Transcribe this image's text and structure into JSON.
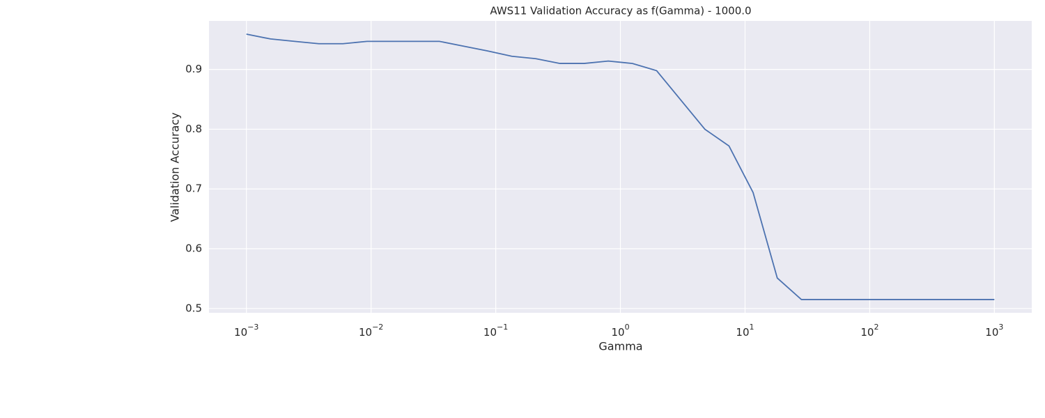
{
  "chart_data": {
    "type": "line",
    "title": "AWS11 Validation Accuracy as f(Gamma) - 1000.0",
    "x_label": "Gamma",
    "y_label": "Validation Accuracy",
    "x": [
      0.001,
      0.0015613,
      0.0024377,
      0.0038061,
      0.0059425,
      0.0092784,
      0.014487,
      0.022619,
      0.035317,
      0.055142,
      0.086097,
      0.13443,
      0.20989,
      0.32771,
      0.51168,
      0.8,
      1.2499,
      1.9514,
      3.0471,
      4.7575,
      7.4285,
      11.6,
      18.135,
      28.315,
      44.21,
      69.03,
      107.77,
      168.28,
      262.74,
      410.22,
      640.5,
      1000
    ],
    "series": [
      {
        "name": "Validation Accuracy",
        "color": "#4c72b0",
        "values": [
          0.959,
          0.951,
          0.947,
          0.943,
          0.943,
          0.947,
          0.947,
          0.947,
          0.947,
          0.939,
          0.931,
          0.922,
          0.918,
          0.91,
          0.91,
          0.914,
          0.91,
          0.898,
          0.849,
          0.8,
          0.772,
          0.694,
          0.551,
          0.515,
          0.515,
          0.515,
          0.515,
          0.515,
          0.515,
          0.515,
          0.515,
          0.515
        ]
      }
    ],
    "x_scale": "log",
    "xlim": [
      0.000501,
      1995
    ],
    "xticks": [
      {
        "value": 0.001,
        "label": "10−3"
      },
      {
        "value": 0.01,
        "label": "10−2"
      },
      {
        "value": 0.1,
        "label": "10−1"
      },
      {
        "value": 1,
        "label": "100"
      },
      {
        "value": 10,
        "label": "101"
      },
      {
        "value": 100,
        "label": "102"
      },
      {
        "value": 1000,
        "label": "103"
      }
    ],
    "ylim": [
      0.4928,
      0.9812
    ],
    "yticks": [
      0.5,
      0.6,
      0.7,
      0.8,
      0.9
    ],
    "grid": true
  }
}
